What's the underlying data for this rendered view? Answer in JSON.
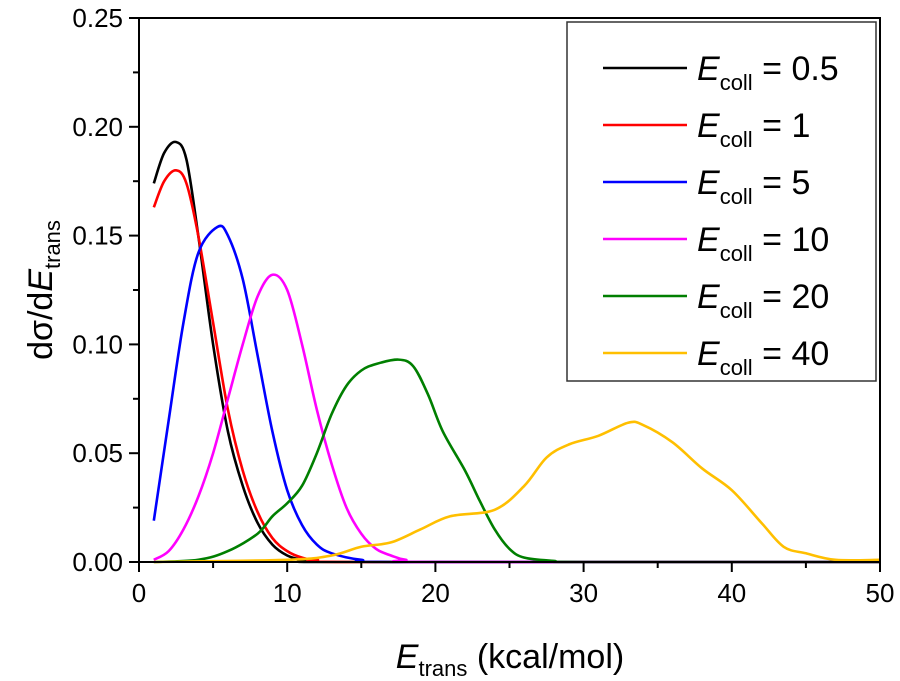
{
  "chart_data": {
    "type": "line",
    "xlabel": {
      "main": "E",
      "sub": "trans",
      "rest": " (kcal/mol)"
    },
    "ylabel": {
      "main": "dσ/dE",
      "sub": "trans"
    },
    "xlim": [
      0,
      50
    ],
    "ylim": [
      0,
      0.25
    ],
    "xticks": [
      "0",
      "10",
      "20",
      "30",
      "40",
      "50"
    ],
    "yticks": [
      "0.00",
      "0.05",
      "0.10",
      "0.15",
      "0.20",
      "0.25"
    ],
    "grid": false,
    "legend_position": "top-right",
    "series": [
      {
        "name": "0.5",
        "label_main": "E",
        "label_sub": "coll",
        "label_rest": " = 0.5",
        "color": "#000000",
        "x": [
          1,
          1.7,
          2.5,
          3.2,
          4,
          5,
          6,
          7,
          8,
          9,
          10,
          11,
          12,
          14,
          50
        ],
        "y": [
          0.174,
          0.188,
          0.193,
          0.185,
          0.15,
          0.1,
          0.06,
          0.035,
          0.018,
          0.008,
          0.003,
          0.001,
          0.0004,
          0,
          0
        ]
      },
      {
        "name": "1",
        "label_main": "E",
        "label_sub": "coll",
        "label_rest": " = 1",
        "color": "#ff0000",
        "x": [
          1,
          1.7,
          2.5,
          3.2,
          4,
          5,
          6,
          7,
          8,
          9,
          10,
          11,
          12,
          15,
          50
        ],
        "y": [
          0.163,
          0.175,
          0.18,
          0.174,
          0.15,
          0.11,
          0.07,
          0.042,
          0.023,
          0.011,
          0.005,
          0.002,
          0.001,
          0,
          0
        ]
      },
      {
        "name": "5",
        "label_main": "E",
        "label_sub": "coll",
        "label_rest": " = 5",
        "color": "#0000ff",
        "x": [
          1,
          2,
          3,
          4,
          5.3,
          6,
          7,
          8,
          9,
          10,
          11,
          12,
          13,
          15,
          18,
          50
        ],
        "y": [
          0.019,
          0.065,
          0.11,
          0.142,
          0.154,
          0.15,
          0.13,
          0.095,
          0.06,
          0.033,
          0.017,
          0.008,
          0.004,
          0.001,
          0,
          0
        ]
      },
      {
        "name": "10",
        "label_main": "E",
        "label_sub": "coll",
        "label_rest": " = 10",
        "color": "#ff00ff",
        "x": [
          1,
          2,
          3,
          4,
          5,
          6,
          7,
          8,
          9,
          10,
          11,
          12,
          13,
          14,
          15,
          16,
          17,
          18,
          20,
          50
        ],
        "y": [
          0.001,
          0.005,
          0.015,
          0.03,
          0.05,
          0.075,
          0.1,
          0.122,
          0.132,
          0.125,
          0.1,
          0.07,
          0.045,
          0.025,
          0.013,
          0.006,
          0.003,
          0.001,
          0,
          0
        ]
      },
      {
        "name": "20",
        "label_main": "E",
        "label_sub": "coll",
        "label_rest": " = 20",
        "color": "#007f00",
        "x": [
          1,
          4,
          6,
          8,
          9,
          10,
          11,
          12,
          13,
          14,
          15,
          16,
          17.5,
          18.5,
          19.5,
          20.5,
          22,
          23,
          24,
          25,
          26,
          28,
          30,
          50
        ],
        "y": [
          0,
          0.001,
          0.005,
          0.013,
          0.021,
          0.027,
          0.035,
          0.05,
          0.068,
          0.081,
          0.088,
          0.091,
          0.093,
          0.09,
          0.077,
          0.06,
          0.042,
          0.028,
          0.015,
          0.006,
          0.002,
          0.0005,
          0,
          0
        ]
      },
      {
        "name": "40",
        "label_main": "E",
        "label_sub": "coll",
        "label_rest": " = 40",
        "color": "#ffbf00",
        "x": [
          1,
          10,
          13,
          15,
          17,
          19,
          21,
          24,
          26,
          27.5,
          29,
          31,
          33,
          34,
          36,
          38,
          40,
          42,
          43.5,
          45,
          47,
          50
        ],
        "y": [
          0,
          0.001,
          0.003,
          0.007,
          0.009,
          0.015,
          0.021,
          0.024,
          0.035,
          0.048,
          0.054,
          0.058,
          0.064,
          0.063,
          0.055,
          0.043,
          0.033,
          0.018,
          0.007,
          0.004,
          0.001,
          0.001
        ]
      }
    ]
  }
}
